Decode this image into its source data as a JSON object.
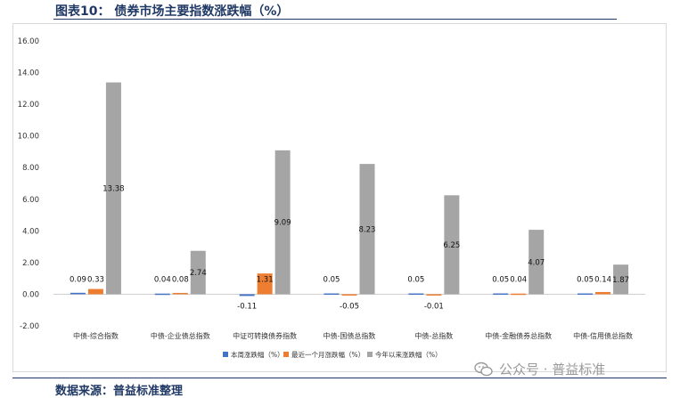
{
  "title": "图表10：  债券市场主要指数涨跌幅（%）",
  "source": "数据来源：普益标准整理",
  "watermark": "公众号 · 普益标准",
  "chart_data": {
    "type": "bar",
    "categories": [
      "中债-综合指数",
      "中债-企业债总指数",
      "中证可转换债券指数",
      "中债-国债总指数",
      "中债-总指数",
      "中债-金融债券总指数",
      "中债-信用债总指数"
    ],
    "series": [
      {
        "name": "本周涨跌幅（%）",
        "color": "#4472c4",
        "values": [
          0.09,
          0.04,
          -0.11,
          0.05,
          0.05,
          0.05,
          0.05
        ]
      },
      {
        "name": "最近一个月涨跌幅（%）",
        "color": "#ed7d31",
        "values": [
          0.33,
          0.08,
          1.31,
          -0.05,
          -0.01,
          0.04,
          0.14
        ]
      },
      {
        "name": "今年以来涨跌幅（%）",
        "color": "#a5a5a5",
        "values": [
          13.38,
          2.74,
          9.09,
          8.23,
          6.25,
          4.07,
          1.87
        ]
      }
    ],
    "labels": [
      [
        "0.09",
        "0.33",
        "13.38"
      ],
      [
        "0.04",
        "0.08",
        "2.74"
      ],
      [
        "-0.11",
        "1.31",
        "9.09"
      ],
      [
        "0.05",
        "-0.05",
        "8.23"
      ],
      [
        "0.05",
        "-0.01",
        "6.25"
      ],
      [
        "0.05",
        "0.04",
        "4.07"
      ],
      [
        "0.05",
        "0.14",
        "1.87"
      ]
    ],
    "y_ticks": [
      "16.00",
      "14.00",
      "12.00",
      "10.00",
      "8.00",
      "6.00",
      "4.00",
      "2.00",
      "0.00",
      "-2.00"
    ],
    "ylim": [
      -2,
      16
    ],
    "grid": false,
    "legend_position": "bottom"
  }
}
